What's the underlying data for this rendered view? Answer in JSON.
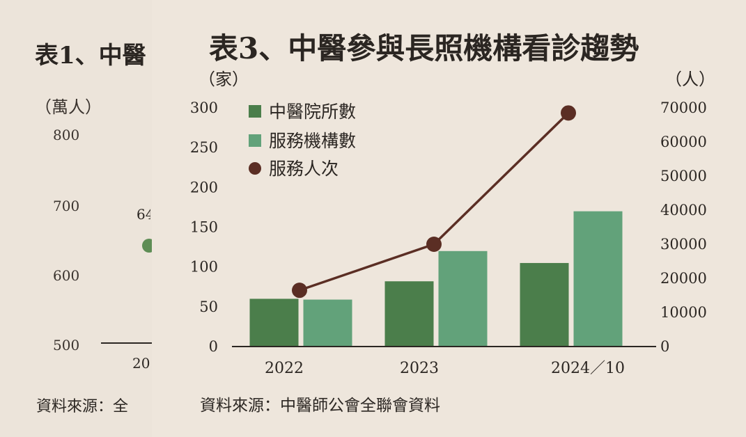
{
  "background_figure": {
    "title": "表1、中醫",
    "unit": "（萬人）",
    "y_ticks": [
      "800",
      "700",
      "600",
      "500"
    ],
    "x_tick": "20",
    "data_label": "64",
    "source": "資料來源：全"
  },
  "chart_data": {
    "type": "bar",
    "title": "表3、中醫參與長照機構看診趨勢",
    "categories": [
      "2022",
      "2023",
      "2024／10"
    ],
    "y_left_unit": "（家）",
    "y_right_unit": "（人）",
    "y_left_lim": [
      0,
      300
    ],
    "y_left_ticks": [
      "300",
      "250",
      "200",
      "150",
      "100",
      "50",
      "0"
    ],
    "y_right_lim": [
      0,
      70000
    ],
    "y_right_ticks": [
      "70000",
      "60000",
      "50000",
      "40000",
      "30000",
      "20000",
      "10000",
      "0"
    ],
    "series": [
      {
        "name": "中醫院所數",
        "type": "bar",
        "axis": "left",
        "color": "#4b7e4b",
        "values": [
          60,
          82,
          105
        ]
      },
      {
        "name": "服務機構數",
        "type": "bar",
        "axis": "left",
        "color": "#62a27a",
        "values": [
          59,
          120,
          170
        ]
      },
      {
        "name": "服務人次",
        "type": "line",
        "axis": "right",
        "color": "#5b2e24",
        "values": [
          16500,
          30000,
          68500
        ]
      }
    ],
    "legend_position": "top-left",
    "grid": false
  },
  "source": "資料來源：中醫師公會全聯會資料"
}
